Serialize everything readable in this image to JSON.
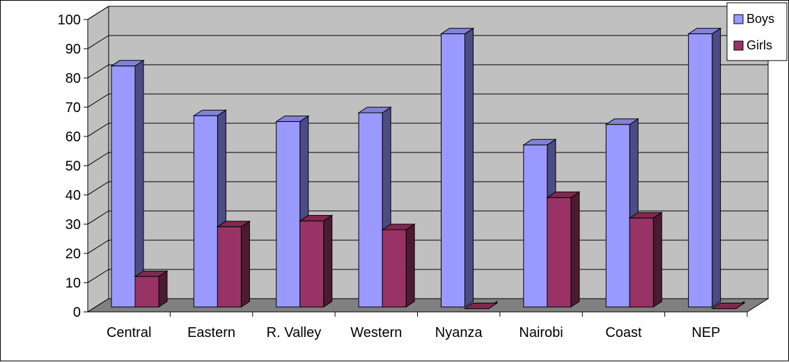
{
  "chart_data": {
    "type": "bar",
    "categories": [
      "Central",
      "Eastern",
      "R. Valley",
      "Western",
      "Nyanza",
      "Nairobi",
      "Coast",
      "NEP"
    ],
    "series": [
      {
        "name": "Boys",
        "values": [
          86,
          69,
          67,
          70,
          97,
          59,
          66,
          97
        ]
      },
      {
        "name": "Girls",
        "values": [
          14,
          31,
          33,
          30,
          3,
          41,
          34,
          3
        ]
      }
    ],
    "ylim": [
      0,
      100
    ],
    "yticks": [
      0,
      10,
      20,
      30,
      40,
      50,
      60,
      70,
      80,
      90,
      100
    ],
    "grid": true,
    "legend": "top-right",
    "style": "3d-clustered",
    "colors": {
      "boys_front": "#9999FF",
      "boys_side": "#4C4C85",
      "boys_top": "#8282D8",
      "girls_front": "#993366",
      "girls_side": "#4D1A33",
      "girls_top": "#80294F",
      "wall": "#C0C0C0",
      "floor": "#808080"
    }
  }
}
